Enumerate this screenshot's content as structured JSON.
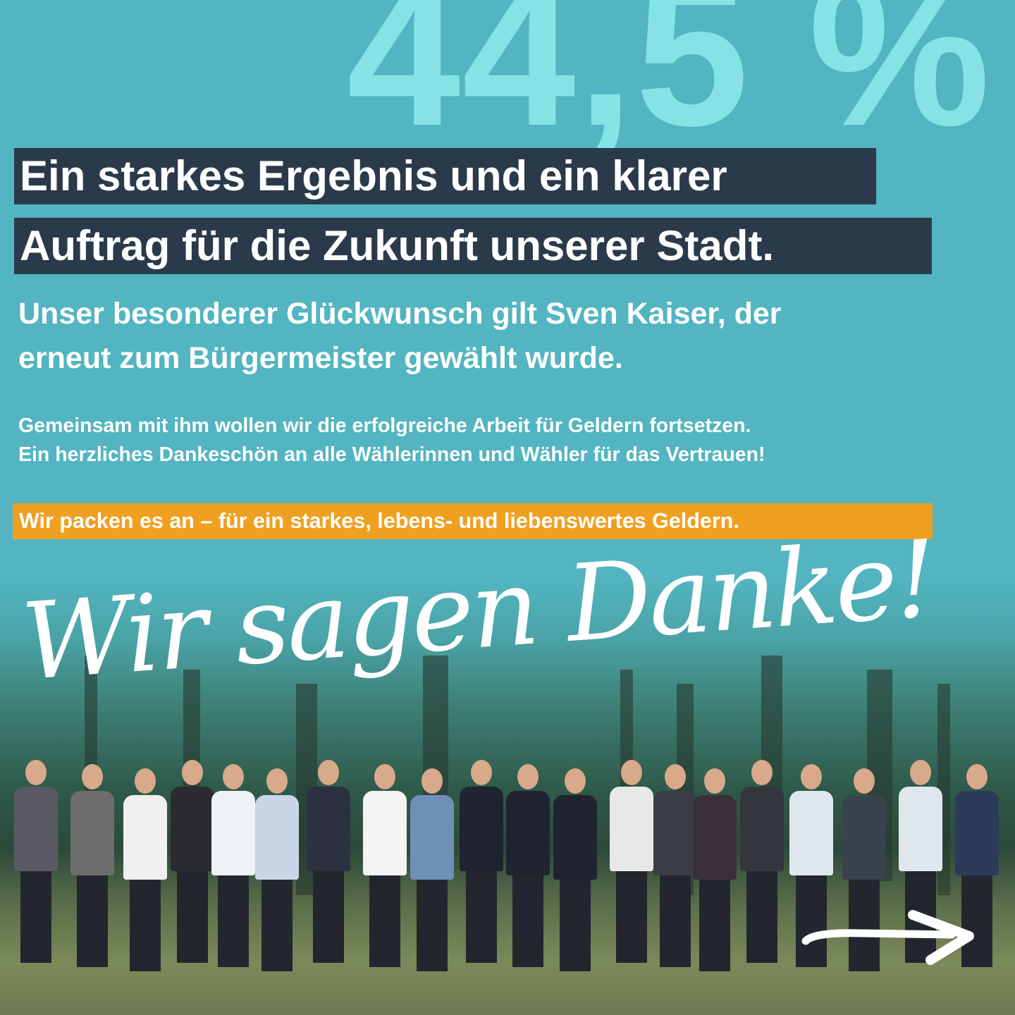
{
  "result": {
    "percentage": "44,5 %"
  },
  "headline": {
    "line1": "Ein starkes Ergebnis und ein klarer",
    "line2": "Auftrag für die Zukunft unserer Stadt."
  },
  "subheadline": {
    "line1": "Unser besonderer Glückwunsch gilt Sven Kaiser, der",
    "line2": "erneut zum Bürgermeister gewählt wurde."
  },
  "body": {
    "line1": "Gemeinsam mit ihm wollen wir die erfolgreiche Arbeit für Geldern fortsetzen.",
    "line2": "Ein herzliches Dankeschön an alle Wählerinnen und Wähler für das Vertrauen!"
  },
  "slogan": "Wir packen es an – für ein starkes, lebens- und liebenswertes Geldern.",
  "handwritten": "Wir sagen Danke!",
  "icons": {
    "arrow": "arrow-right-icon"
  },
  "colors": {
    "background": "#52b5c1",
    "percentage": "#85e3e6",
    "headline_box": "#2b3a4a",
    "slogan_box": "#f0a020",
    "text": "#ffffff"
  }
}
